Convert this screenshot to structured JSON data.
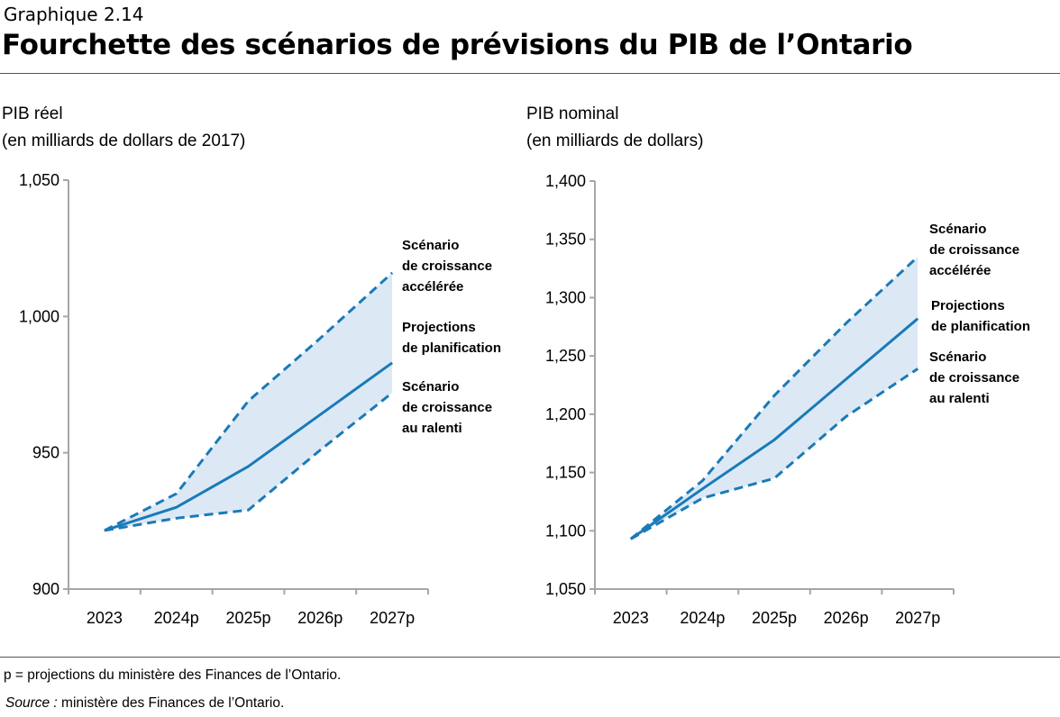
{
  "header": {
    "kicker": "Graphique 2.14",
    "title": "Fourchette des scénarios de prévisions du PIB de l’Ontario"
  },
  "colors": {
    "line": "#1a7ab8",
    "band": "#dce9f5",
    "axis": "#a6a6a6"
  },
  "chart_data": [
    {
      "type": "line",
      "title_lines": [
        "PIB réel",
        "(en milliards de dollars de 2017)"
      ],
      "categories": [
        "2023",
        "2024p",
        "2025p",
        "2026p",
        "2027p"
      ],
      "ylim": [
        900,
        1050
      ],
      "yticks": [
        900,
        950,
        1000,
        1050
      ],
      "ytick_labels": [
        "900",
        "950",
        "1,000",
        "1,050"
      ],
      "grid": false,
      "series": [
        {
          "name": "Scénario de croissance accélérée",
          "label_lines": [
            "Scénario",
            "de croissance",
            "accélérée"
          ],
          "style": "dashed",
          "values": [
            921.5,
            935,
            969,
            992,
            1016
          ]
        },
        {
          "name": "Projections de planification",
          "label_lines": [
            "Projections",
            "de planification"
          ],
          "style": "solid",
          "values": [
            921.5,
            930,
            945,
            964,
            983
          ]
        },
        {
          "name": "Scénario de croissance au ralenti",
          "label_lines": [
            "Scénario",
            "de croissance",
            "au ralenti"
          ],
          "style": "dashed",
          "values": [
            921.5,
            926,
            929,
            951,
            972
          ]
        }
      ]
    },
    {
      "type": "line",
      "title_lines": [
        "PIB nominal",
        "(en milliards de dollars)"
      ],
      "categories": [
        "2023",
        "2024p",
        "2025p",
        "2026p",
        "2027p"
      ],
      "ylim": [
        1050,
        1400
      ],
      "yticks": [
        1050,
        1100,
        1150,
        1200,
        1250,
        1300,
        1350,
        1400
      ],
      "ytick_labels": [
        "1,050",
        "1,100",
        "1,150",
        "1,200",
        "1,250",
        "1,300",
        "1,350",
        "1,400"
      ],
      "grid": false,
      "series": [
        {
          "name": "Scénario de croissance accélérée",
          "label_lines": [
            "Scénario",
            "de croissance",
            "accélérée"
          ],
          "style": "dashed",
          "values": [
            1093,
            1143,
            1216,
            1278,
            1335
          ]
        },
        {
          "name": "Projections de planification",
          "label_lines": [
            "Projections",
            "de planification"
          ],
          "style": "solid",
          "values": [
            1093,
            1136,
            1178,
            1230,
            1282
          ]
        },
        {
          "name": "Scénario de croissance au ralenti",
          "label_lines": [
            "Scénario",
            "de croissance",
            "au ralenti"
          ],
          "style": "dashed",
          "values": [
            1093,
            1128,
            1145,
            1198,
            1239
          ]
        }
      ]
    }
  ],
  "footer": {
    "note": "p = projections du ministère des Finances de l’Ontario.",
    "source_label": "Source :",
    "source_text": " ministère des Finances de l’Ontario."
  }
}
